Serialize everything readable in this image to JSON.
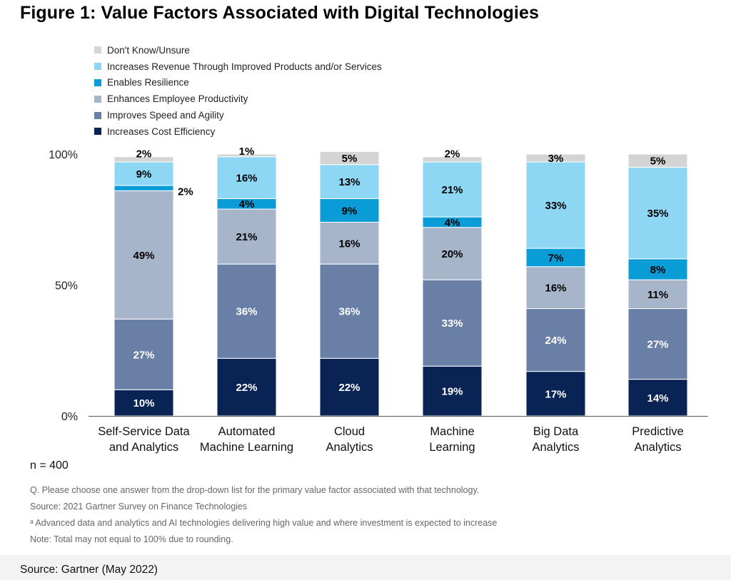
{
  "title": "Figure 1: Value Factors Associated with Digital Technologies",
  "n_label": "n = 400",
  "notes": [
    "Q. Please choose one answer from the drop-down list for the primary value factor associated with that technology.",
    "Source: 2021 Gartner Survey on Finance Technologies",
    "ᵃ Advanced data and analytics and AI technologies delivering high value and where investment is expected to increase",
    "Note: Total may not equal to 100% due to rounding."
  ],
  "source": "Source: Gartner (May 2022)",
  "chart_data": {
    "type": "bar",
    "stacked": true,
    "ylim": [
      0,
      100
    ],
    "yticks": [
      "0%",
      "50%",
      "100%"
    ],
    "ytick_values": [
      0,
      50,
      100
    ],
    "categories": [
      [
        "Self-Service Data",
        "and Analytics"
      ],
      [
        "Automated",
        "Machine Learning"
      ],
      [
        "Cloud",
        "Analytics"
      ],
      [
        "Machine",
        "Learning"
      ],
      [
        "Big Data",
        "Analytics"
      ],
      [
        "Predictive",
        "Analytics"
      ]
    ],
    "legend_order": [
      "Don't Know/Unsure",
      "Increases Revenue Through Improved Products and/or Services",
      "Enables Resilience",
      "Enhances Employee Productivity",
      "Improves Speed and Agility",
      "Increases Cost Efficiency"
    ],
    "series": [
      {
        "name": "Increases Cost Efficiency",
        "color": "#0a2355",
        "label_color": "#ffffff",
        "values": [
          10,
          22,
          22,
          19,
          17,
          14
        ]
      },
      {
        "name": "Improves Speed and Agility",
        "color": "#6a7fa5",
        "label_color": "#ffffff",
        "values": [
          27,
          36,
          36,
          33,
          24,
          27
        ]
      },
      {
        "name": "Enhances Employee Productivity",
        "color": "#a7b5cb",
        "label_color": "#000000",
        "values": [
          49,
          21,
          16,
          20,
          16,
          11
        ]
      },
      {
        "name": "Enables Resilience",
        "color": "#0a9cd6",
        "label_color": "#000000",
        "values": [
          2,
          4,
          9,
          4,
          7,
          8
        ]
      },
      {
        "name": "Increases Revenue Through Improved Products and/or Services",
        "color": "#8dd7f5",
        "label_color": "#000000",
        "values": [
          9,
          16,
          13,
          21,
          33,
          35
        ]
      },
      {
        "name": "Don't Know/Unsure",
        "color": "#d4d4d4",
        "label_color": "#000000",
        "values": [
          2,
          1,
          5,
          2,
          3,
          5
        ]
      }
    ]
  }
}
